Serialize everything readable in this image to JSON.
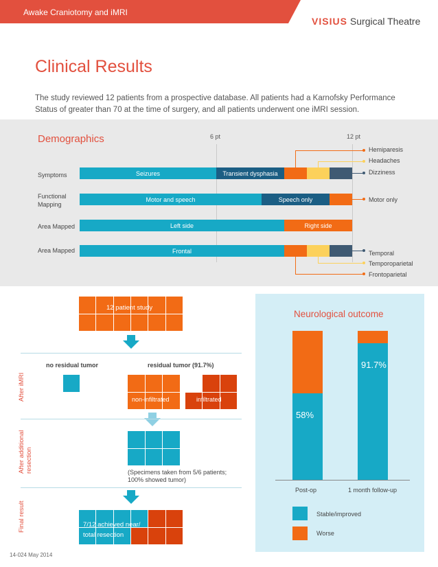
{
  "header": {
    "title": "Awake Craniotomy and iMRI",
    "brand_mark": "VISIUS",
    "brand_rest": "Surgical Theatre"
  },
  "heading": "Clinical Results",
  "intro": "The study reviewed 12 patients from a prospective database. All patients had a Karnofsky Performance Status of greater than 70 at the time of surgery, and all patients underwent one iMRI session.",
  "colors": {
    "accent": "#e2503e",
    "teal": "#17a9c6",
    "navy": "#1b5e84",
    "orange": "#f26b15",
    "yellow": "#fcd15b",
    "slate": "#3f5a73",
    "dark_orange": "#d9420c"
  },
  "demographics": {
    "title": "Demographics",
    "ticks": [
      "6 pt",
      "12 pt"
    ],
    "rows": [
      {
        "label": "Symptoms",
        "segments": [
          "Seizures",
          "Transient dysphasia"
        ],
        "callouts": [
          "Hemiparesis",
          "Headaches",
          "Dizziness"
        ]
      },
      {
        "label_line1": "Functional",
        "label_line2": "Mapping",
        "segments": [
          "Motor and speech",
          "Speech only"
        ],
        "callouts": [
          "Motor only"
        ]
      },
      {
        "label": "Area Mapped",
        "segments": [
          "Left side",
          "Right side"
        ]
      },
      {
        "label": "Area Mapped",
        "segments": [
          "Frontal"
        ],
        "callouts": [
          "Temporal",
          "Temporoparietal",
          "Frontoparietal"
        ]
      }
    ]
  },
  "flow": {
    "study_label": "12 patient study",
    "no_residual": "no residual tumor",
    "residual": "residual tumor (91.7%)",
    "non_infiltrated": "non-infiltrated",
    "infiltrated": "infiltrated",
    "specimens_line1": "(Specimens taken from 5/6 patients;",
    "specimens_line2": "100% showed tumor)",
    "result_line1": "7/12 achieved near/",
    "result_line2": "total resection",
    "side_labels": {
      "after_imri": "After iMRI",
      "after_additional_1": "After additional",
      "after_additional_2": "resection",
      "final": "Final result"
    }
  },
  "neuro": {
    "title": "Neurological outcome",
    "chart_data": {
      "type": "bar",
      "categories": [
        "Post-op",
        "1 month follow-up"
      ],
      "series": [
        {
          "name": "Stable/improved",
          "values": [
            58,
            91.7
          ]
        },
        {
          "name": "Worse",
          "values": [
            42,
            8.3
          ]
        }
      ],
      "data_labels": [
        "58%",
        "91.7%"
      ],
      "ylim": [
        0,
        100
      ],
      "legend": "bottom"
    }
  },
  "footer": "14-024 May 2014"
}
